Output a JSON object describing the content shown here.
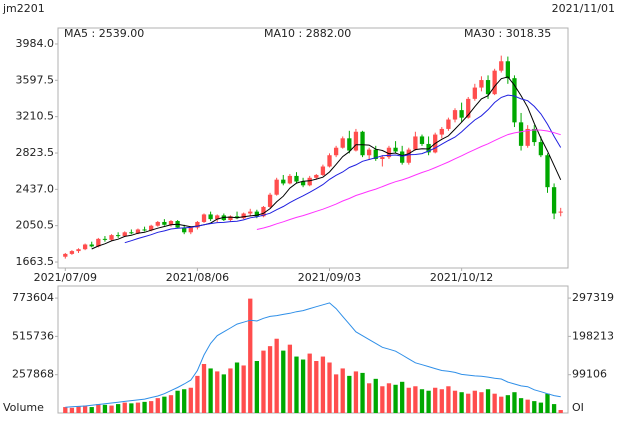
{
  "chart_data": {
    "type": "candlestick",
    "title": "jm2201",
    "date": "2021/11/01",
    "categories": [
      "2021/07/09",
      null,
      null,
      null,
      null,
      null,
      null,
      null,
      null,
      null,
      null,
      null,
      null,
      null,
      null,
      null,
      null,
      null,
      null,
      null,
      "2021/08/06",
      null,
      null,
      null,
      null,
      null,
      null,
      null,
      null,
      null,
      null,
      null,
      null,
      null,
      null,
      null,
      null,
      null,
      null,
      null,
      "2021/09/03",
      null,
      null,
      null,
      null,
      null,
      null,
      null,
      null,
      null,
      null,
      null,
      null,
      null,
      null,
      null,
      null,
      null,
      null,
      null,
      "2021/10/12",
      null,
      null,
      null,
      null,
      null,
      null,
      null,
      null,
      null,
      null,
      null,
      null,
      null,
      null,
      null
    ],
    "open": [
      1720,
      1750,
      1780,
      1800,
      1850,
      1830,
      1910,
      1900,
      1950,
      1940,
      1980,
      1970,
      2010,
      2000,
      2050,
      2090,
      2060,
      2100,
      2030,
      1980,
      2030,
      2090,
      2170,
      2120,
      2160,
      2110,
      2150,
      2130,
      2180,
      2200,
      2150,
      2250,
      2380,
      2540,
      2500,
      2580,
      2520,
      2480,
      2560,
      2590,
      2680,
      2800,
      2880,
      2980,
      2850,
      3050,
      2800,
      2860,
      2760,
      2780,
      2880,
      2840,
      2720,
      2860,
      3000,
      2920,
      2830,
      3020,
      3080,
      3180,
      3280,
      3200,
      3400,
      3520,
      3600,
      3450,
      3700,
      3800,
      3620,
      3150,
      2900,
      3080,
      2940,
      2800,
      2460,
      2200
    ],
    "high": [
      1760,
      1790,
      1810,
      1860,
      1880,
      1920,
      1940,
      1960,
      1980,
      1990,
      2010,
      2020,
      2040,
      2060,
      2100,
      2120,
      2110,
      2110,
      2060,
      2040,
      2100,
      2180,
      2200,
      2170,
      2180,
      2160,
      2200,
      2190,
      2230,
      2220,
      2260,
      2400,
      2560,
      2590,
      2600,
      2620,
      2560,
      2580,
      2600,
      2700,
      2820,
      2900,
      3000,
      3060,
      3080,
      3060,
      2880,
      2900,
      2800,
      2900,
      2950,
      2900,
      2880,
      3050,
      3020,
      3000,
      3040,
      3100,
      3200,
      3300,
      3360,
      3420,
      3560,
      3640,
      3650,
      3720,
      3860,
      3850,
      3650,
      3250,
      3120,
      3120,
      3000,
      2820,
      2500,
      2240
    ],
    "low": [
      1700,
      1740,
      1760,
      1790,
      1820,
      1820,
      1880,
      1890,
      1920,
      1930,
      1960,
      1960,
      1990,
      1990,
      2040,
      2050,
      2040,
      2020,
      1960,
      1960,
      2010,
      2080,
      2100,
      2090,
      2100,
      2090,
      2120,
      2120,
      2150,
      2130,
      2140,
      2240,
      2370,
      2480,
      2490,
      2500,
      2460,
      2470,
      2540,
      2580,
      2670,
      2780,
      2870,
      2820,
      2840,
      2780,
      2750,
      2740,
      2680,
      2760,
      2820,
      2700,
      2700,
      2850,
      2900,
      2800,
      2820,
      2980,
      3060,
      3150,
      3150,
      3190,
      3380,
      3480,
      3400,
      3440,
      3680,
      3560,
      3100,
      2850,
      2880,
      2900,
      2780,
      2400,
      2120,
      2150
    ],
    "close": [
      1750,
      1780,
      1800,
      1850,
      1830,
      1910,
      1900,
      1950,
      1940,
      1980,
      1970,
      2010,
      2000,
      2050,
      2090,
      2060,
      2100,
      2030,
      1980,
      2030,
      2090,
      2170,
      2120,
      2160,
      2110,
      2150,
      2130,
      2180,
      2200,
      2150,
      2250,
      2380,
      2540,
      2500,
      2580,
      2520,
      2480,
      2560,
      2590,
      2680,
      2800,
      2880,
      2980,
      2850,
      3050,
      2800,
      2860,
      2760,
      2780,
      2880,
      2840,
      2720,
      2860,
      3000,
      2920,
      2830,
      3020,
      3080,
      3180,
      3280,
      3200,
      3400,
      3520,
      3600,
      3450,
      3700,
      3800,
      3620,
      3150,
      2900,
      3080,
      2940,
      2800,
      2460,
      2180,
      2200
    ],
    "up_color": "#ff4d4d",
    "down_color": "#00a800",
    "ylim": [
      1600,
      4154
    ],
    "yticks": [
      1663.5,
      2050.5,
      {
        "value": 2437,
        "label": "2437.0"
      },
      2823.5,
      3210.5,
      3597.5,
      {
        "value": 3984,
        "label": "3984.0"
      }
    ],
    "ma": [
      {
        "label": "MA5 : 2539.00",
        "color": "#000000",
        "values": [
          null,
          null,
          null,
          null,
          1802,
          1834,
          1858,
          1888,
          1906,
          1936,
          1948,
          1970,
          1980,
          2002,
          2024,
          2042,
          2060,
          2066,
          2052,
          2040,
          2046,
          2060,
          2078,
          2120,
          2138,
          2142,
          2134,
          2146,
          2154,
          2162,
          2182,
          2232,
          2304,
          2364,
          2450,
          2504,
          2524,
          2528,
          2546,
          2566,
          2622,
          2702,
          2786,
          2838,
          2912,
          2912,
          2908,
          2864,
          2850,
          2816,
          2824,
          2796,
          2816,
          2860,
          2868,
          2866,
          2926,
          2970,
          3006,
          3078,
          3152,
          3228,
          3316,
          3400,
          3434,
          3534,
          3614,
          3634,
          3544,
          3434,
          3310,
          3138,
          2982,
          2844,
          2692,
          2539
        ]
      },
      {
        "label": "MA10 : 2882.00",
        "color": "#2020e0",
        "values": [
          null,
          null,
          null,
          null,
          null,
          null,
          null,
          null,
          null,
          1869,
          1891,
          1914,
          1934,
          1954,
          1980,
          1995,
          2015,
          2023,
          2027,
          2032,
          2044,
          2060,
          2072,
          2083,
          2085,
          2094,
          2097,
          2112,
          2134,
          2146,
          2162,
          2183,
          2220,
          2254,
          2296,
          2333,
          2368,
          2406,
          2445,
          2488,
          2543,
          2587,
          2622,
          2669,
          2697,
          2735,
          2755,
          2774,
          2794,
          2798,
          2802,
          2790,
          2805,
          2808,
          2817,
          2845,
          2877,
          2917,
          2957,
          2993,
          3048,
          3114,
          3175,
          3220,
          3283,
          3361,
          3415,
          3440,
          3430,
          3400,
          3380,
          3320,
          3240,
          3130,
          3000,
          2882
        ]
      },
      {
        "label": "MA30 : 3018.35",
        "color": "#ff33ff",
        "values": [
          null,
          null,
          null,
          null,
          null,
          null,
          null,
          null,
          null,
          null,
          null,
          null,
          null,
          null,
          null,
          null,
          null,
          null,
          null,
          null,
          null,
          null,
          null,
          null,
          null,
          null,
          null,
          null,
          null,
          2010,
          2026,
          2046,
          2070,
          2092,
          2116,
          2138,
          2158,
          2180,
          2203,
          2226,
          2252,
          2280,
          2313,
          2340,
          2372,
          2394,
          2418,
          2440,
          2466,
          2494,
          2518,
          2538,
          2562,
          2590,
          2616,
          2640,
          2668,
          2698,
          2728,
          2762,
          2794,
          2828,
          2860,
          2893,
          2922,
          2956,
          2990,
          3020,
          3038,
          3050,
          3062,
          3070,
          3068,
          3058,
          3040,
          3018.35
        ]
      }
    ],
    "volume": {
      "label": "Volume",
      "ylim": [
        0,
        855000
      ],
      "yticks": [
        257868,
        515736,
        773604
      ],
      "values": [
        40000,
        35000,
        45000,
        50000,
        40000,
        60000,
        55000,
        50000,
        60000,
        70000,
        65000,
        70000,
        75000,
        80000,
        100000,
        110000,
        120000,
        150000,
        160000,
        170000,
        250000,
        330000,
        300000,
        280000,
        260000,
        300000,
        340000,
        320000,
        770000,
        350000,
        420000,
        450000,
        500000,
        420000,
        460000,
        380000,
        360000,
        400000,
        350000,
        380000,
        340000,
        260000,
        300000,
        250000,
        280000,
        270000,
        200000,
        230000,
        180000,
        200000,
        190000,
        210000,
        170000,
        180000,
        160000,
        150000,
        170000,
        160000,
        180000,
        150000,
        140000,
        130000,
        150000,
        140000,
        160000,
        130000,
        110000,
        120000,
        140000,
        100000,
        90000,
        80000,
        70000,
        130000,
        60000,
        20000
      ]
    },
    "oi": {
      "label": "OI",
      "color": "#2f8fe8",
      "ylim": [
        0,
        328600
      ],
      "yticks": [
        99106,
        198213,
        297319
      ],
      "values": [
        15000,
        16000,
        17000,
        18000,
        20000,
        22000,
        24000,
        26000,
        28000,
        30000,
        32000,
        34000,
        36000,
        40000,
        44000,
        50000,
        58000,
        66000,
        75000,
        85000,
        110000,
        150000,
        180000,
        200000,
        210000,
        220000,
        230000,
        235000,
        240000,
        238000,
        245000,
        250000,
        252000,
        255000,
        258000,
        262000,
        265000,
        270000,
        275000,
        280000,
        285000,
        270000,
        250000,
        230000,
        210000,
        200000,
        190000,
        180000,
        170000,
        165000,
        160000,
        150000,
        140000,
        130000,
        125000,
        120000,
        115000,
        110000,
        108000,
        105000,
        100000,
        98000,
        96000,
        95000,
        93000,
        90000,
        88000,
        80000,
        75000,
        70000,
        68000,
        60000,
        55000,
        50000,
        45000,
        42000
      ]
    }
  }
}
